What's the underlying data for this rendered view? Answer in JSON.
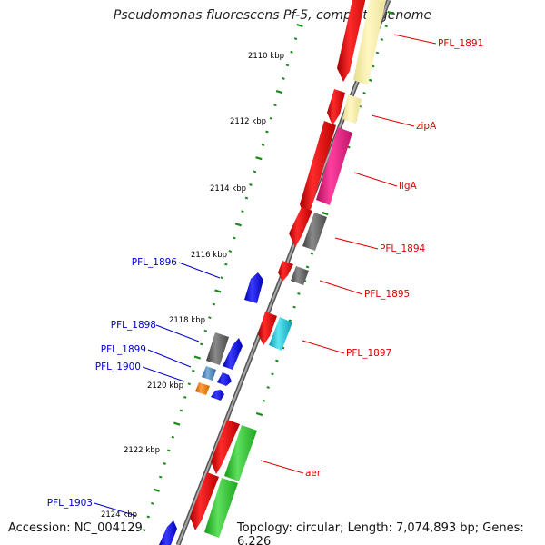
{
  "title": "Pseudomonas fluorescens Pf-5, complete genome",
  "footer": {
    "accession": "Accession: NC_004129",
    "info": "Topology: circular; Length: 7,074,893 bp; Genes: 6,226"
  },
  "colors": {
    "backbone": "#808080",
    "tick": "#1a8a1a",
    "forward_label": "#dd0000",
    "reverse_label": "#0000cc",
    "forward_gene": "#ee0000",
    "reverse_gene": "#0000ee"
  },
  "ticks": [
    {
      "label": "2110 kbp"
    },
    {
      "label": "2112 kbp"
    },
    {
      "label": "2114 kbp"
    },
    {
      "label": "2116 kbp"
    },
    {
      "label": "2118 kbp"
    },
    {
      "label": "2120 kbp"
    },
    {
      "label": "2122 kbp"
    },
    {
      "label": "2124 kbp"
    }
  ],
  "forward_labels": [
    {
      "text": "PFL_1891"
    },
    {
      "text": "zipA"
    },
    {
      "text": "ligA"
    },
    {
      "text": "PFL_1894"
    },
    {
      "text": "PFL_1895"
    },
    {
      "text": "PFL_1897"
    },
    {
      "text": "aer"
    }
  ],
  "reverse_labels": [
    {
      "text": "PFL_1896"
    },
    {
      "text": "PFL_1898"
    },
    {
      "text": "PFL_1899"
    },
    {
      "text": "PFL_1900"
    },
    {
      "text": "PFL_1903"
    }
  ]
}
